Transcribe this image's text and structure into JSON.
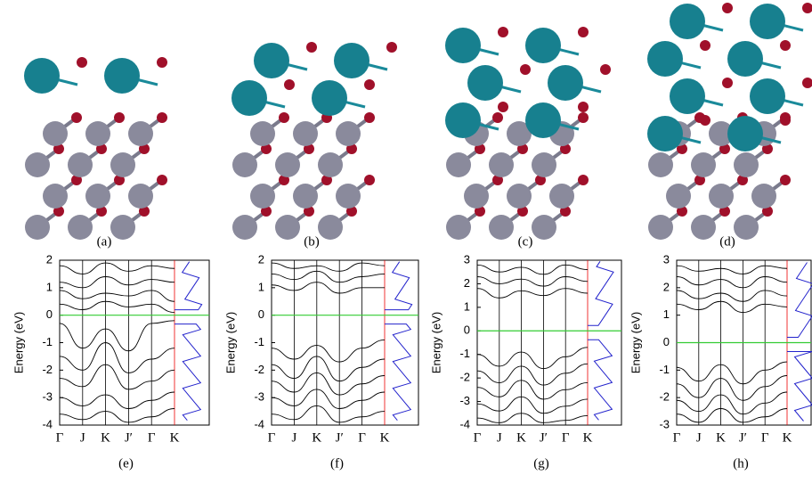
{
  "structure_captions": [
    "(a)",
    "(b)",
    "(c)",
    "(d)"
  ],
  "chart_data": [
    {
      "type": "line",
      "caption": "(e)",
      "y_label": "Energy (eV)",
      "categories": [
        "Γ",
        "J",
        "K",
        "J′",
        "Γ",
        "K"
      ],
      "ylim": [
        -4,
        2
      ],
      "yticks": [
        -4,
        -3,
        -2,
        -1,
        0,
        1,
        2
      ],
      "fermi_level": 0,
      "band_color": "#000000",
      "fermi_color": "#33cc33",
      "series": [
        {
          "values": [
            1.8,
            1.5,
            1.9,
            1.6,
            1.8,
            1.7
          ]
        },
        {
          "values": [
            1.2,
            1.0,
            1.4,
            1.1,
            1.3,
            1.2
          ]
        },
        {
          "values": [
            0.9,
            0.6,
            0.8,
            0.7,
            0.9,
            0.5
          ]
        },
        {
          "values": [
            0.4,
            0.2,
            0.5,
            0.3,
            0.4,
            0.1
          ]
        },
        {
          "values": [
            -0.3,
            -1.2,
            -0.5,
            -1.3,
            -0.3,
            -0.2
          ]
        },
        {
          "values": [
            -1.5,
            -2.0,
            -1.0,
            -2.1,
            -1.6,
            -1.2
          ]
        },
        {
          "values": [
            -2.3,
            -2.6,
            -1.8,
            -2.7,
            -2.4,
            -2.0
          ]
        },
        {
          "values": [
            -3.0,
            -3.3,
            -2.9,
            -3.4,
            -3.1,
            -2.8
          ]
        },
        {
          "values": [
            -3.6,
            -3.8,
            -3.5,
            -3.9,
            -3.7,
            -3.4
          ]
        }
      ]
    },
    {
      "type": "line",
      "caption": "(f)",
      "y_label": "Energy (eV)",
      "categories": [
        "Γ",
        "J",
        "K",
        "J′",
        "Γ",
        "K"
      ],
      "ylim": [
        -4,
        2
      ],
      "yticks": [
        -4,
        -3,
        -2,
        -1,
        0,
        1,
        2
      ],
      "fermi_level": 0,
      "band_color": "#000000",
      "fermi_color": "#33cc33",
      "series": [
        {
          "values": [
            1.9,
            1.7,
            1.8,
            1.6,
            1.9,
            1.8
          ]
        },
        {
          "values": [
            1.5,
            1.3,
            1.6,
            1.2,
            1.4,
            1.5
          ]
        },
        {
          "values": [
            1.1,
            0.9,
            1.2,
            0.8,
            1.0,
            1.0
          ]
        },
        {
          "values": [
            -1.2,
            -1.6,
            -1.1,
            -1.7,
            -1.2,
            -0.9
          ]
        },
        {
          "values": [
            -1.8,
            -2.3,
            -1.5,
            -2.4,
            -1.9,
            -1.6
          ]
        },
        {
          "values": [
            -2.4,
            -2.8,
            -2.1,
            -2.9,
            -2.5,
            -2.2
          ]
        },
        {
          "values": [
            -3.0,
            -3.3,
            -2.7,
            -3.4,
            -3.1,
            -2.8
          ]
        },
        {
          "values": [
            -3.6,
            -3.8,
            -3.3,
            -3.9,
            -3.7,
            -3.5
          ]
        }
      ]
    },
    {
      "type": "line",
      "caption": "(g)",
      "y_label": "Energy (eV)",
      "categories": [
        "Γ",
        "J",
        "K",
        "J′",
        "Γ",
        "K"
      ],
      "ylim": [
        -4,
        3
      ],
      "yticks": [
        -4,
        -3,
        -2,
        -1,
        0,
        1,
        2,
        3
      ],
      "fermi_level": 0,
      "band_color": "#000000",
      "fermi_color": "#33cc33",
      "series": [
        {
          "values": [
            2.8,
            2.5,
            2.7,
            2.4,
            2.8,
            2.6
          ]
        },
        {
          "values": [
            2.3,
            2.0,
            2.2,
            1.9,
            2.3,
            2.1
          ]
        },
        {
          "values": [
            1.8,
            1.4,
            1.7,
            1.5,
            1.8,
            1.6
          ]
        },
        {
          "values": [
            -1.0,
            -1.5,
            -0.9,
            -1.6,
            -1.1,
            -0.7
          ]
        },
        {
          "values": [
            -1.7,
            -2.2,
            -1.5,
            -2.3,
            -1.8,
            -1.4
          ]
        },
        {
          "values": [
            -2.4,
            -2.8,
            -2.1,
            -2.9,
            -2.5,
            -2.2
          ]
        },
        {
          "values": [
            -3.1,
            -3.4,
            -2.8,
            -3.5,
            -3.2,
            -2.9
          ]
        },
        {
          "values": [
            -3.7,
            -3.9,
            -3.5,
            -3.9,
            -3.8,
            -3.6
          ]
        }
      ]
    },
    {
      "type": "line",
      "caption": "(h)",
      "y_label": "Energy (eV)",
      "categories": [
        "Γ",
        "J",
        "K",
        "J′",
        "Γ",
        "K"
      ],
      "ylim": [
        -3,
        3
      ],
      "yticks": [
        -3,
        -2,
        -1,
        0,
        1,
        2,
        3
      ],
      "fermi_level": 0,
      "band_color": "#000000",
      "fermi_color": "#33cc33",
      "series": [
        {
          "values": [
            2.8,
            2.6,
            2.7,
            2.5,
            2.8,
            2.7
          ]
        },
        {
          "values": [
            2.4,
            2.1,
            2.3,
            2.0,
            2.4,
            2.2
          ]
        },
        {
          "values": [
            1.9,
            1.6,
            1.8,
            1.5,
            1.9,
            1.7
          ]
        },
        {
          "values": [
            1.4,
            1.2,
            1.5,
            1.1,
            1.4,
            1.3
          ]
        },
        {
          "values": [
            -0.9,
            -1.4,
            -0.8,
            -1.5,
            -1.0,
            -0.7
          ]
        },
        {
          "values": [
            -1.5,
            -2.0,
            -1.3,
            -2.1,
            -1.6,
            -1.2
          ]
        },
        {
          "values": [
            -2.1,
            -2.5,
            -1.9,
            -2.6,
            -2.2,
            -1.8
          ]
        },
        {
          "values": [
            -2.6,
            -2.9,
            -2.4,
            -2.9,
            -2.7,
            -2.4
          ]
        }
      ]
    }
  ]
}
